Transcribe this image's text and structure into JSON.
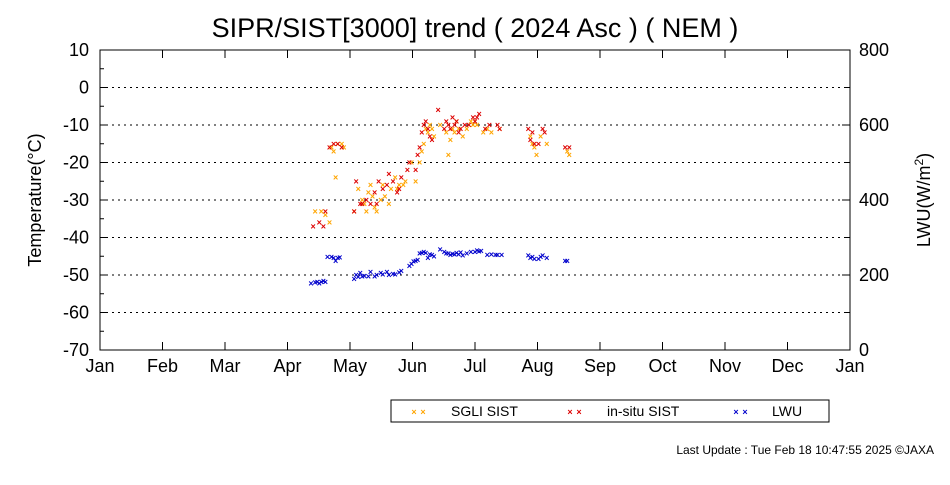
{
  "chart_data": {
    "type": "scatter",
    "title": "SIPR/SIST[3000] trend ( 2024 Asc ) ( NEM )",
    "y_left_label": "Temperature(°C)",
    "y_right_label_base": "LWU(W/m",
    "y_right_label_sup": "2",
    "y_right_label_end": ")",
    "x_ticks": [
      "Jan",
      "Feb",
      "Mar",
      "Apr",
      "May",
      "Jun",
      "Jul",
      "Aug",
      "Sep",
      "Oct",
      "Nov",
      "Dec",
      "Jan"
    ],
    "y_left_ticks": [
      "10",
      "0",
      "-10",
      "-20",
      "-30",
      "-40",
      "-50",
      "-60",
      "-70"
    ],
    "y_left_ticks_values": [
      10,
      0,
      -10,
      -20,
      -30,
      -40,
      -50,
      -60,
      -70
    ],
    "y_right_ticks": [
      "800",
      "600",
      "400",
      "200",
      "0"
    ],
    "y_right_ticks_values": [
      800,
      600,
      400,
      200,
      0
    ],
    "y_left_range": [
      -70,
      10
    ],
    "y_right_range": [
      0,
      800
    ],
    "x_range_days": [
      0,
      366
    ],
    "grid": "horizontal dotted",
    "legend_placement": "bottom-center",
    "marker": "×",
    "legend": [
      {
        "label": "SGLI SIST",
        "color": "#ffa500"
      },
      {
        "label": "in-situ SIST",
        "color": "#dd0000"
      },
      {
        "label": "LWU",
        "color": "#0000cc"
      }
    ],
    "series": [
      {
        "name": "SGLI SIST",
        "axis": "left",
        "color": "#ffa500",
        "points": [
          [
            105,
            -33
          ],
          [
            108,
            -33
          ],
          [
            110,
            -34
          ],
          [
            112,
            -36
          ],
          [
            113,
            -16
          ],
          [
            114,
            -17
          ],
          [
            115,
            -24
          ],
          [
            116,
            -15
          ],
          [
            118,
            -15
          ],
          [
            119,
            -16
          ],
          [
            124,
            -33
          ],
          [
            126,
            -27
          ],
          [
            128,
            -30
          ],
          [
            129,
            -31
          ],
          [
            130,
            -33
          ],
          [
            131,
            -28
          ],
          [
            132,
            -26
          ],
          [
            133,
            -29
          ],
          [
            134,
            -32
          ],
          [
            135,
            -33
          ],
          [
            137,
            -30
          ],
          [
            138,
            -26
          ],
          [
            139,
            -29
          ],
          [
            141,
            -31
          ],
          [
            142,
            -27
          ],
          [
            144,
            -24
          ],
          [
            145,
            -27
          ],
          [
            146,
            -26
          ],
          [
            148,
            -26
          ],
          [
            149,
            -25
          ],
          [
            152,
            -20
          ],
          [
            154,
            -25
          ],
          [
            156,
            -20
          ],
          [
            157,
            -17
          ],
          [
            158,
            -15
          ],
          [
            159,
            -11
          ],
          [
            160,
            -12
          ],
          [
            161,
            -10
          ],
          [
            162,
            -11
          ],
          [
            163,
            -13
          ],
          [
            166,
            -10
          ],
          [
            169,
            -12
          ],
          [
            170,
            -18
          ],
          [
            171,
            -14
          ],
          [
            172,
            -11
          ],
          [
            173,
            -12
          ],
          [
            174,
            -9
          ],
          [
            175,
            -11
          ],
          [
            177,
            -13
          ],
          [
            179,
            -11
          ],
          [
            181,
            -9
          ],
          [
            182,
            -10
          ],
          [
            183,
            -9
          ],
          [
            184,
            -10
          ],
          [
            187,
            -12
          ],
          [
            189,
            -11
          ],
          [
            191,
            -12
          ],
          [
            195,
            -11
          ],
          [
            210,
            -13
          ],
          [
            211,
            -15
          ],
          [
            212,
            -16
          ],
          [
            213,
            -18
          ],
          [
            215,
            -13
          ],
          [
            218,
            -15
          ],
          [
            228,
            -17
          ],
          [
            229,
            -18
          ]
        ]
      },
      {
        "name": "in-situ SIST",
        "axis": "left",
        "color": "#dd0000",
        "points": [
          [
            104,
            -37
          ],
          [
            107,
            -36
          ],
          [
            109,
            -37
          ],
          [
            110,
            -33
          ],
          [
            112,
            -16
          ],
          [
            114,
            -15
          ],
          [
            116,
            -15
          ],
          [
            118,
            -16
          ],
          [
            124,
            -33
          ],
          [
            125,
            -25
          ],
          [
            127,
            -31
          ],
          [
            128,
            -31
          ],
          [
            130,
            -30
          ],
          [
            132,
            -31
          ],
          [
            134,
            -28
          ],
          [
            135,
            -31
          ],
          [
            136,
            -25
          ],
          [
            138,
            -27
          ],
          [
            140,
            -26
          ],
          [
            141,
            -23
          ],
          [
            143,
            -25
          ],
          [
            145,
            -28
          ],
          [
            146,
            -27
          ],
          [
            147,
            -24
          ],
          [
            150,
            -22
          ],
          [
            151,
            -20
          ],
          [
            154,
            -22
          ],
          [
            155,
            -18
          ],
          [
            156,
            -16
          ],
          [
            157,
            -12
          ],
          [
            158,
            -10
          ],
          [
            159,
            -9
          ],
          [
            160,
            -11
          ],
          [
            161,
            -13
          ],
          [
            162,
            -14
          ],
          [
            165,
            -6
          ],
          [
            168,
            -11
          ],
          [
            169,
            -9
          ],
          [
            170,
            -10
          ],
          [
            171,
            -11
          ],
          [
            172,
            -8
          ],
          [
            173,
            -10
          ],
          [
            174,
            -9
          ],
          [
            175,
            -12
          ],
          [
            176,
            -11
          ],
          [
            178,
            -10
          ],
          [
            180,
            -10
          ],
          [
            182,
            -8
          ],
          [
            183,
            -9
          ],
          [
            184,
            -8
          ],
          [
            185,
            -7
          ],
          [
            188,
            -11
          ],
          [
            190,
            -10
          ],
          [
            194,
            -10
          ],
          [
            195,
            -11
          ],
          [
            209,
            -11
          ],
          [
            210,
            -14
          ],
          [
            211,
            -12
          ],
          [
            212,
            -15
          ],
          [
            214,
            -15
          ],
          [
            216,
            -11
          ],
          [
            217,
            -12
          ],
          [
            227,
            -16
          ],
          [
            229,
            -16
          ]
        ]
      },
      {
        "name": "LWU",
        "axis": "right",
        "color": "#0000cc",
        "points": [
          [
            103,
            178
          ],
          [
            105,
            180
          ],
          [
            106,
            182
          ],
          [
            107,
            178
          ],
          [
            108,
            181
          ],
          [
            109,
            184
          ],
          [
            110,
            182
          ],
          [
            111,
            248
          ],
          [
            113,
            248
          ],
          [
            114,
            246
          ],
          [
            115,
            238
          ],
          [
            116,
            246
          ],
          [
            117,
            247
          ],
          [
            124,
            190
          ],
          [
            125,
            200
          ],
          [
            126,
            195
          ],
          [
            127,
            205
          ],
          [
            128,
            196
          ],
          [
            129,
            197
          ],
          [
            131,
            196
          ],
          [
            132,
            208
          ],
          [
            134,
            196
          ],
          [
            135,
            200
          ],
          [
            137,
            205
          ],
          [
            138,
            202
          ],
          [
            140,
            208
          ],
          [
            141,
            200
          ],
          [
            143,
            203
          ],
          [
            144,
            202
          ],
          [
            146,
            207
          ],
          [
            147,
            211
          ],
          [
            151,
            224
          ],
          [
            152,
            230
          ],
          [
            153,
            236
          ],
          [
            154,
            237
          ],
          [
            155,
            240
          ],
          [
            156,
            258
          ],
          [
            157,
            259
          ],
          [
            158,
            262
          ],
          [
            159,
            259
          ],
          [
            160,
            246
          ],
          [
            161,
            255
          ],
          [
            162,
            253
          ],
          [
            163,
            250
          ],
          [
            166,
            268
          ],
          [
            168,
            262
          ],
          [
            169,
            258
          ],
          [
            170,
            258
          ],
          [
            171,
            253
          ],
          [
            172,
            256
          ],
          [
            173,
            255
          ],
          [
            174,
            259
          ],
          [
            175,
            255
          ],
          [
            176,
            260
          ],
          [
            177,
            252
          ],
          [
            179,
            258
          ],
          [
            181,
            262
          ],
          [
            183,
            261
          ],
          [
            184,
            265
          ],
          [
            185,
            263
          ],
          [
            186,
            264
          ],
          [
            189,
            253
          ],
          [
            191,
            255
          ],
          [
            193,
            253
          ],
          [
            194,
            254
          ],
          [
            196,
            253
          ],
          [
            209,
            252
          ],
          [
            210,
            246
          ],
          [
            211,
            248
          ],
          [
            212,
            243
          ],
          [
            214,
            243
          ],
          [
            215,
            248
          ],
          [
            216,
            252
          ],
          [
            218,
            245
          ],
          [
            227,
            238
          ],
          [
            228,
            238
          ]
        ]
      }
    ]
  },
  "footer": "Last Update : Tue Feb 18 10:47:55 2025  ©JAXA"
}
